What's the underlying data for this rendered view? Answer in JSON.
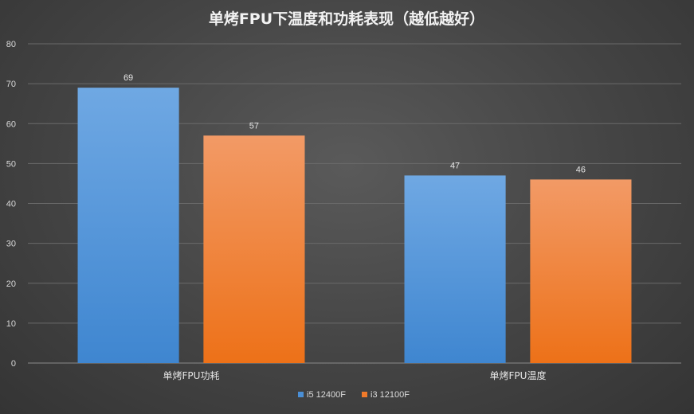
{
  "chart_data": {
    "type": "bar",
    "title": "单烤FPU下温度和功耗表现（越低越好）",
    "categories": [
      "单烤FPU功耗",
      "单烤FPU温度"
    ],
    "series": [
      {
        "name": "i5 12400F",
        "values": [
          69,
          47
        ],
        "color": "#4a8fd6"
      },
      {
        "name": "i3 12100F",
        "values": [
          57,
          46
        ],
        "color": "#f07a2a"
      }
    ],
    "ylim": [
      0,
      80
    ],
    "yticks": [
      0,
      10,
      20,
      30,
      40,
      50,
      60,
      70,
      80
    ],
    "grid": true,
    "legend": "bottom"
  }
}
